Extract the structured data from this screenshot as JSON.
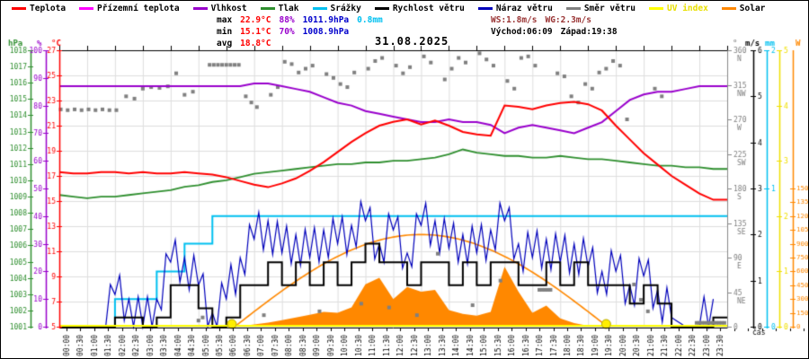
{
  "header": {
    "title": "31.08.2025",
    "legend": [
      {
        "name": "teplota",
        "label": "Teplota",
        "color": "#ff0000"
      },
      {
        "name": "prizemni-teplota",
        "label": "Přízemní teplota",
        "color": "#ff00ff"
      },
      {
        "name": "vlhkost",
        "label": "Vlhkost",
        "color": "#9900cc"
      },
      {
        "name": "tlak",
        "label": "Tlak",
        "color": "#2f8f2f"
      },
      {
        "name": "srazky",
        "label": "Srážky",
        "color": "#00c0f0"
      },
      {
        "name": "rychlost-vetru",
        "label": "Rychlost větru",
        "color": "#000000"
      },
      {
        "name": "naraz-vetru",
        "label": "Náraz větru",
        "color": "#0000bb"
      },
      {
        "name": "smer-vetru",
        "label": "Směr větru",
        "color": "#808080"
      },
      {
        "name": "uv-index",
        "label": "UV index",
        "color": "#ffff00"
      },
      {
        "name": "solar",
        "label": "Solar",
        "color": "#ff8800"
      }
    ],
    "stats_left": [
      [
        {
          "text": "max",
          "color": "#000000"
        },
        {
          "text": "22.9°C",
          "color": "#ff0000"
        },
        {
          "text": "88%",
          "color": "#9900cc"
        },
        {
          "text": "1011.9hPa",
          "color": "#0000cc"
        },
        {
          "text": "0.8mm",
          "color": "#00c0f0"
        }
      ],
      [
        {
          "text": "min",
          "color": "#000000"
        },
        {
          "text": "15.1°C",
          "color": "#ff0000"
        },
        {
          "text": "70%",
          "color": "#9900cc"
        },
        {
          "text": "1008.9hPa",
          "color": "#0000cc"
        }
      ],
      [
        {
          "text": "avg",
          "color": "#000000"
        },
        {
          "text": "18.8°C",
          "color": "#ff0000"
        }
      ]
    ],
    "stats_right": [
      [
        {
          "text": "WS:1.8m/s",
          "color": "#993333"
        },
        {
          "text": "WG:2.3m/s",
          "color": "#993333"
        }
      ],
      [
        {
          "text": "Východ:06:09",
          "color": "#000000"
        },
        {
          "text": "Západ:19:38",
          "color": "#000000"
        }
      ]
    ]
  },
  "axes": {
    "left": [
      {
        "unit": "hPa",
        "color": "#2f8f2f",
        "min": 1001,
        "max": 1018,
        "step": 1
      },
      {
        "unit": "%",
        "color": "#9900cc",
        "min": 0,
        "max": 100,
        "step": 10
      },
      {
        "unit": "°C",
        "color": "#ff0000",
        "min": 5,
        "max": 27,
        "step": 2
      }
    ],
    "right": {
      "direction": {
        "unit": "°",
        "color": "#808080",
        "labels": [
          [
            "360",
            "N"
          ],
          [
            "315",
            "NW"
          ],
          [
            "270",
            "W"
          ],
          [
            "225",
            "SW"
          ],
          [
            "180",
            "S"
          ],
          [
            "135",
            "SE"
          ],
          [
            "90",
            "E"
          ],
          [
            "45",
            "NE"
          ],
          [
            "0",
            ""
          ]
        ]
      },
      "wind": {
        "unit": "m/s",
        "color": "#000000",
        "min": 0,
        "max": 6,
        "step": 1
      },
      "rain": {
        "unit": "mm",
        "color": "#00c0f0",
        "labels": [
          "2",
          "1",
          "0"
        ]
      },
      "uv": {
        "unit": "",
        "color": "#f0e000",
        "min": 0,
        "max": 5,
        "step": 1
      },
      "solar": {
        "unit": "W",
        "color": "#ff8800",
        "labels": [
          "1500",
          "1350",
          "1200",
          "1050",
          "900",
          "750",
          "600",
          "450",
          "300",
          "150",
          "0"
        ],
        "max_scale": 3000
      }
    },
    "x_label": "čas"
  },
  "chart_data": {
    "type": "line",
    "x_times": [
      "00:00",
      "00:30",
      "01:00",
      "01:30",
      "02:00",
      "02:30",
      "03:00",
      "03:30",
      "04:00",
      "04:30",
      "05:00",
      "05:30",
      "06:00",
      "06:30",
      "07:00",
      "07:30",
      "08:00",
      "08:30",
      "09:00",
      "09:30",
      "10:00",
      "10:30",
      "11:00",
      "11:30",
      "12:00",
      "12:30",
      "13:00",
      "13:30",
      "14:00",
      "14:30",
      "15:00",
      "15:30",
      "16:00",
      "16:30",
      "17:00",
      "17:30",
      "18:00",
      "18:30",
      "19:00",
      "19:30",
      "20:00",
      "20:30",
      "21:00",
      "21:30",
      "22:00",
      "22:30",
      "23:00",
      "23:30"
    ],
    "series": [
      {
        "name": "Teplota",
        "unit": "°C",
        "color": "#ff0000",
        "values": [
          17.3,
          17.2,
          17.2,
          17.3,
          17.3,
          17.2,
          17.3,
          17.2,
          17.2,
          17.3,
          17.2,
          17.1,
          16.9,
          16.6,
          16.3,
          16.1,
          16.4,
          16.8,
          17.4,
          18.1,
          18.9,
          19.7,
          20.4,
          21.0,
          21.3,
          21.5,
          21.1,
          21.4,
          21.0,
          20.5,
          20.3,
          20.2,
          22.6,
          22.5,
          22.3,
          22.6,
          22.8,
          22.9,
          22.7,
          22.2,
          21.0,
          19.9,
          18.8,
          17.9,
          17.0,
          16.3,
          15.6,
          15.1
        ]
      },
      {
        "name": "Vlhkost",
        "unit": "%",
        "color": "#9900cc",
        "values": [
          87,
          87,
          87,
          87,
          87,
          87,
          87,
          87,
          87,
          87,
          87,
          87,
          87,
          87,
          88,
          88,
          87,
          86,
          85,
          83,
          81,
          80,
          78,
          77,
          76,
          75,
          74,
          74,
          75,
          74,
          74,
          73,
          70,
          72,
          73,
          72,
          71,
          70,
          72,
          74,
          78,
          82,
          84,
          85,
          85,
          86,
          87,
          87
        ]
      },
      {
        "name": "Tlak",
        "unit": "hPa",
        "color": "#2f8f2f",
        "values": [
          1009.1,
          1009.0,
          1008.9,
          1009.0,
          1009.0,
          1009.1,
          1009.2,
          1009.3,
          1009.4,
          1009.6,
          1009.7,
          1009.9,
          1010.0,
          1010.2,
          1010.4,
          1010.5,
          1010.6,
          1010.7,
          1010.8,
          1010.9,
          1011.0,
          1011.0,
          1011.1,
          1011.1,
          1011.2,
          1011.2,
          1011.3,
          1011.4,
          1011.6,
          1011.9,
          1011.7,
          1011.6,
          1011.5,
          1011.5,
          1011.4,
          1011.4,
          1011.5,
          1011.4,
          1011.3,
          1011.3,
          1011.2,
          1011.1,
          1011.0,
          1010.9,
          1010.9,
          1010.8,
          1010.8,
          1010.7
        ]
      },
      {
        "name": "Srážky",
        "unit": "mm",
        "color": "#00c0f0",
        "style": "step",
        "values": [
          0,
          0,
          0,
          0,
          0.2,
          0.2,
          0.2,
          0.4,
          0.4,
          0.6,
          0.6,
          0.8,
          0.8,
          0.8,
          0.8,
          0.8,
          0.8,
          0.8,
          0.8,
          0.8,
          0.8,
          0.8,
          0.8,
          0.8,
          0.8,
          0.8,
          0.8,
          0.8,
          0.8,
          0.8,
          0.8,
          0.8,
          0.8,
          0.8,
          0.8,
          0.8,
          0.8,
          0.8,
          0.8,
          0.8,
          0.8,
          0.8,
          0.8,
          0.8,
          0.8,
          0.8,
          0.8,
          0.8
        ]
      },
      {
        "name": "Rychlost větru",
        "unit": "m/s",
        "color": "#000000",
        "style": "step",
        "values": [
          0,
          0,
          0,
          0,
          0.2,
          0.2,
          0,
          0.2,
          0.9,
          0.9,
          0.4,
          0,
          0.2,
          0.9,
          0.9,
          1.4,
          0.9,
          1.4,
          0.9,
          1.4,
          0.9,
          1.4,
          1.8,
          1.4,
          1.4,
          0.9,
          1.4,
          1.4,
          0.9,
          1.4,
          0.9,
          1.4,
          1.4,
          0.9,
          0.9,
          1.4,
          0.9,
          1.4,
          0.9,
          0.9,
          0.9,
          0.5,
          0.9,
          0.5,
          0,
          0,
          0,
          0.2
        ]
      },
      {
        "name": "Náraz větru",
        "unit": "m/s",
        "color": "#0000bb",
        "style": "spiky",
        "values": [
          0,
          0,
          0,
          0,
          0.7,
          0.6,
          0,
          0.6,
          1.4,
          1.5,
          0.9,
          0.3,
          0.6,
          1.5,
          1.9,
          2.3,
          1.6,
          2.0,
          1.5,
          2.1,
          1.8,
          2.2,
          2.3,
          1.8,
          2.1,
          1.6,
          2.2,
          2.3,
          1.7,
          2.0,
          1.6,
          2.1,
          2.3,
          1.8,
          1.5,
          1.9,
          1.4,
          1.8,
          1.3,
          1.2,
          1.2,
          0.9,
          1.1,
          0.8,
          0.2,
          0,
          0,
          0.6
        ]
      },
      {
        "name": "Solar",
        "unit": "W",
        "color": "#ff8800",
        "style": "area",
        "values": [
          0,
          0,
          0,
          0,
          0,
          0,
          0,
          0,
          0,
          0,
          0,
          0,
          0,
          5,
          25,
          45,
          70,
          100,
          130,
          160,
          150,
          210,
          460,
          530,
          300,
          430,
          380,
          400,
          180,
          140,
          120,
          160,
          650,
          380,
          150,
          230,
          90,
          40,
          10,
          0,
          0,
          0,
          0,
          0,
          0,
          0,
          0,
          0
        ]
      },
      {
        "name": "UV index",
        "unit": "",
        "color": "#ffff00",
        "values": [
          0,
          0,
          0,
          0,
          0,
          0,
          0,
          0,
          0,
          0,
          0,
          0,
          0,
          0,
          0,
          0,
          0,
          0,
          0,
          0,
          0,
          0,
          0,
          0,
          0,
          0,
          0,
          0,
          0,
          0,
          0,
          0,
          0,
          0,
          0,
          0,
          0,
          0,
          0,
          0,
          0,
          0,
          0,
          0,
          0,
          0,
          0,
          0
        ]
      }
    ],
    "wind_direction_points": [
      [
        0.05,
        283
      ],
      [
        0.3,
        282
      ],
      [
        0.55,
        283
      ],
      [
        0.8,
        282
      ],
      [
        1.05,
        283
      ],
      [
        1.3,
        282
      ],
      [
        1.55,
        283
      ],
      [
        1.8,
        282
      ],
      [
        2.05,
        282
      ],
      [
        2.4,
        300
      ],
      [
        2.7,
        297
      ],
      [
        3.0,
        310
      ],
      [
        3.3,
        312
      ],
      [
        3.6,
        311
      ],
      [
        3.9,
        313
      ],
      [
        4.2,
        330
      ],
      [
        4.5,
        302
      ],
      [
        4.8,
        306
      ],
      [
        5.0,
        8
      ],
      [
        5.15,
        12
      ],
      [
        5.4,
        341
      ],
      [
        5.55,
        341
      ],
      [
        5.7,
        341
      ],
      [
        5.85,
        341
      ],
      [
        6.0,
        341
      ],
      [
        6.15,
        341
      ],
      [
        6.3,
        341
      ],
      [
        6.45,
        341
      ],
      [
        6.7,
        300
      ],
      [
        6.9,
        292
      ],
      [
        7.1,
        286
      ],
      [
        7.35,
        15
      ],
      [
        7.6,
        302
      ],
      [
        7.85,
        312
      ],
      [
        8.1,
        345
      ],
      [
        8.35,
        342
      ],
      [
        8.6,
        331
      ],
      [
        8.85,
        336
      ],
      [
        9.1,
        340
      ],
      [
        9.35,
        20
      ],
      [
        9.6,
        329
      ],
      [
        9.85,
        324
      ],
      [
        10.1,
        316
      ],
      [
        10.35,
        312
      ],
      [
        10.6,
        331
      ],
      [
        10.85,
        30
      ],
      [
        11.1,
        336
      ],
      [
        11.35,
        346
      ],
      [
        11.6,
        350
      ],
      [
        11.85,
        25
      ],
      [
        12.1,
        340
      ],
      [
        12.35,
        330
      ],
      [
        12.6,
        338
      ],
      [
        12.85,
        15
      ],
      [
        13.1,
        352
      ],
      [
        13.35,
        344
      ],
      [
        13.6,
        95
      ],
      [
        13.85,
        322
      ],
      [
        14.1,
        336
      ],
      [
        14.35,
        350
      ],
      [
        14.6,
        344
      ],
      [
        14.85,
        28
      ],
      [
        15.1,
        356
      ],
      [
        15.35,
        348
      ],
      [
        15.6,
        340
      ],
      [
        15.85,
        60
      ],
      [
        16.1,
        320
      ],
      [
        16.35,
        310
      ],
      [
        16.6,
        350
      ],
      [
        16.85,
        352
      ],
      [
        17.1,
        340
      ],
      [
        17.25,
        48
      ],
      [
        17.35,
        48
      ],
      [
        17.45,
        48
      ],
      [
        17.55,
        48
      ],
      [
        17.65,
        48
      ],
      [
        17.9,
        330
      ],
      [
        18.15,
        326
      ],
      [
        18.4,
        300
      ],
      [
        18.65,
        292
      ],
      [
        18.9,
        316
      ],
      [
        19.15,
        310
      ],
      [
        19.4,
        331
      ],
      [
        19.65,
        336
      ],
      [
        19.9,
        346
      ],
      [
        20.15,
        340
      ],
      [
        20.4,
        270
      ],
      [
        20.65,
        55
      ],
      [
        20.9,
        35
      ],
      [
        21.15,
        20
      ],
      [
        21.4,
        310
      ],
      [
        21.65,
        300
      ],
      [
        22.9,
        5
      ],
      [
        23.0,
        5
      ],
      [
        23.1,
        5
      ],
      [
        23.2,
        5
      ],
      [
        23.3,
        5
      ],
      [
        23.4,
        5
      ],
      [
        23.5,
        5
      ],
      [
        23.6,
        5
      ],
      [
        23.7,
        5
      ],
      [
        23.8,
        5
      ],
      [
        23.9,
        5
      ]
    ],
    "solar_model": {
      "start": 6.3,
      "end": 19.7,
      "peak_w": 1000
    },
    "sun_markers": [
      6.2,
      19.65
    ],
    "ylim_temp": [
      5,
      27
    ],
    "ylim_hum": [
      0,
      100
    ],
    "ylim_pres": [
      1001,
      1018
    ],
    "ylim_rain": [
      0,
      2
    ],
    "ylim_wind": [
      0,
      6
    ],
    "ylim_dir": [
      0,
      360
    ],
    "ylim_uv": [
      0,
      5
    ],
    "ylim_solar": [
      0,
      3000
    ],
    "grid": true,
    "legend_position": "top"
  }
}
